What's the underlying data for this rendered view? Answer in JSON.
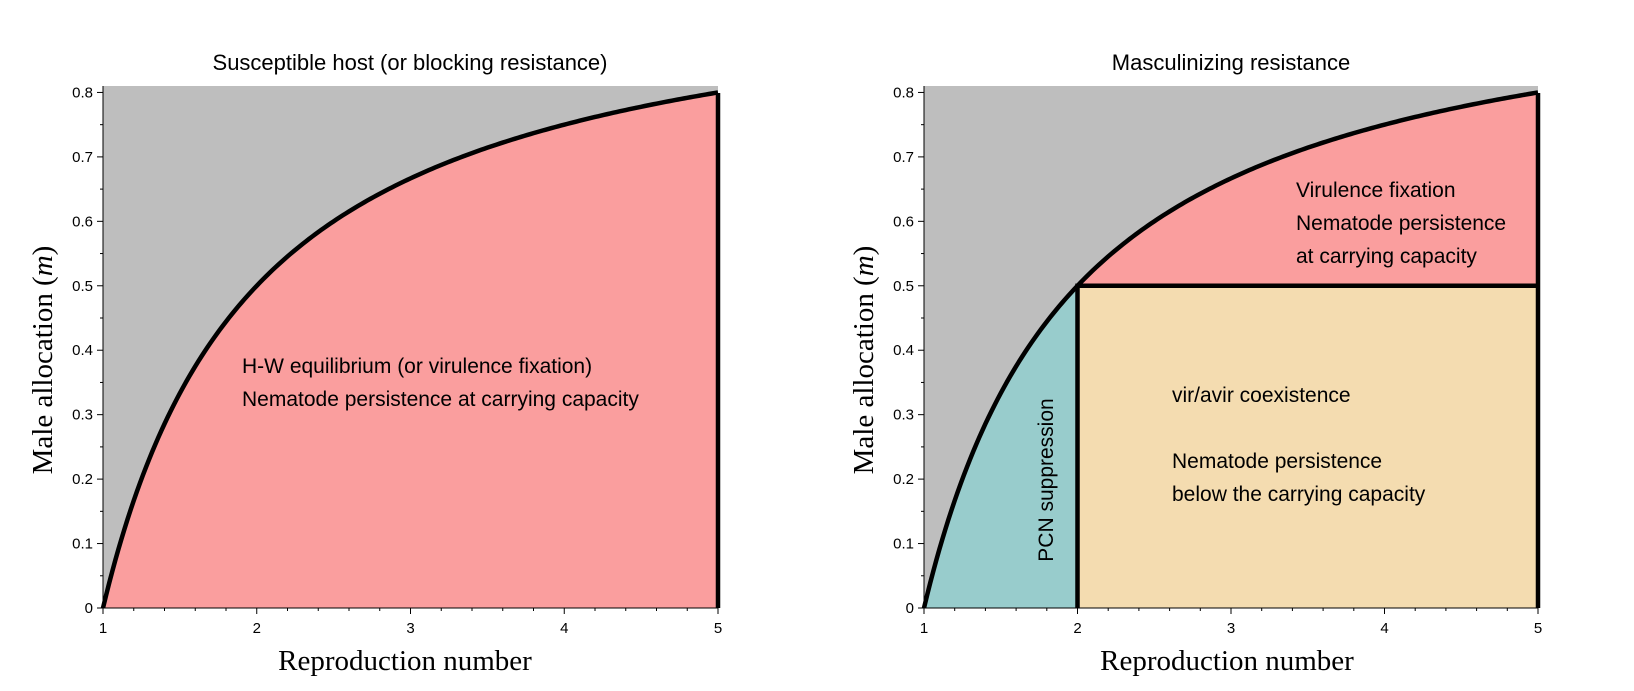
{
  "colors": {
    "gray_region": "#bebebe",
    "red_region": "#fa9e9e",
    "teal_region": "#98cccc",
    "tan_region": "#f4dcb0",
    "boundary": "#000000"
  },
  "chart_data": [
    {
      "type": "area",
      "title": "Susceptible host (or blocking resistance)",
      "xlabel": "Reproduction number",
      "ylabel_text": "Male allocation ",
      "ylabel_var": "m",
      "xlim": [
        1,
        5
      ],
      "ylim": [
        0,
        0.81
      ],
      "xticks": [
        1,
        2,
        3,
        4,
        5
      ],
      "yticks": [
        0,
        0.1,
        0.2,
        0.3,
        0.4,
        0.5,
        0.6,
        0.7,
        0.8
      ],
      "ytick_labels": [
        "0",
        "0.1",
        "0.2",
        "0.3",
        "0.4",
        "0.5",
        "0.6",
        "0.7",
        "0.8"
      ],
      "boundary_curve": {
        "name": "m = 1 - 1/R",
        "x": [
          1,
          1.25,
          1.5,
          1.75,
          2,
          2.5,
          3,
          3.5,
          4,
          4.5,
          5
        ],
        "y": [
          0,
          0.2,
          0.333,
          0.429,
          0.5,
          0.6,
          0.667,
          0.714,
          0.75,
          0.778,
          0.8
        ]
      },
      "regions": [
        {
          "id": "above-curve",
          "color": "gray",
          "lines": []
        },
        {
          "id": "below-curve",
          "color": "red",
          "lines": [
            "H-W equilibrium (or virulence fixation)",
            "Nematode persistence at carrying capacity"
          ]
        }
      ]
    },
    {
      "type": "area",
      "title": "Masculinizing resistance",
      "xlabel": "Reproduction number",
      "ylabel_text": "Male allocation ",
      "ylabel_var": "m",
      "xlim": [
        1,
        5
      ],
      "ylim": [
        0,
        0.81
      ],
      "xticks": [
        1,
        2,
        3,
        4,
        5
      ],
      "yticks": [
        0,
        0.1,
        0.2,
        0.3,
        0.4,
        0.5,
        0.6,
        0.7,
        0.8
      ],
      "ytick_labels": [
        "0",
        "0.1",
        "0.2",
        "0.3",
        "0.4",
        "0.5",
        "0.6",
        "0.7",
        "0.8"
      ],
      "boundary_curve": {
        "name": "m = 1 - 1/R",
        "x": [
          1,
          1.25,
          1.5,
          1.75,
          2,
          2.5,
          3,
          3.5,
          4,
          4.5,
          5
        ],
        "y": [
          0,
          0.2,
          0.333,
          0.429,
          0.5,
          0.6,
          0.667,
          0.714,
          0.75,
          0.778,
          0.8
        ]
      },
      "thresholds": {
        "vertical_x": 2,
        "horizontal_y": 0.5
      },
      "regions": [
        {
          "id": "above-curve",
          "color": "gray",
          "lines": []
        },
        {
          "id": "virulence-fixation",
          "color": "red",
          "lines": [
            "Virulence fixation",
            "Nematode persistence",
            "at carrying capacity"
          ]
        },
        {
          "id": "pcn-suppression",
          "color": "teal",
          "lines": [
            "PCN suppression"
          ]
        },
        {
          "id": "coexistence",
          "color": "tan",
          "lines": [
            "vir/avir coexistence",
            "",
            "Nematode persistence",
            "below the carrying capacity"
          ]
        }
      ]
    }
  ]
}
